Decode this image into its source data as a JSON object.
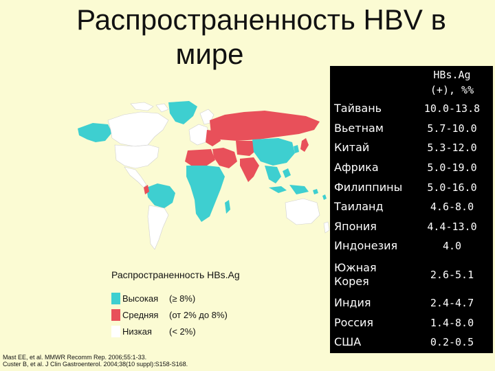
{
  "title": {
    "line1": "Распространенность HBV в",
    "line2": "мире"
  },
  "table": {
    "header": [
      "HBs.Ag",
      "(+), %%"
    ],
    "rows": [
      {
        "country": "Тайвань",
        "value": "10.0-13.8"
      },
      {
        "country": "Вьетнам",
        "value": "5.7-10.0"
      },
      {
        "country": "Китай",
        "value": "5.3-12.0"
      },
      {
        "country": "Африка",
        "value": "5.0-19.0"
      },
      {
        "country": "Филиппины",
        "value": "5.0-16.0"
      },
      {
        "country": "Таиланд",
        "value": "4.6-8.0"
      },
      {
        "country": "Япония",
        "value": "4.4-13.0"
      },
      {
        "country": "Индонезия",
        "value": "4.0"
      },
      {
        "country": "Южная Корея",
        "value": "2.6-5.1"
      },
      {
        "country": "Индия",
        "value": "2.4-4.7"
      },
      {
        "country": "Россия",
        "value": "1.4-8.0"
      },
      {
        "country": "США",
        "value": "0.2-0.5"
      }
    ]
  },
  "legend": {
    "title": "Распространенность HBs.Ag",
    "items": [
      {
        "label": "Высокая",
        "range": "(≥ 8%)",
        "color": "#3ecfd0"
      },
      {
        "label": "Средняя",
        "range": "(от 2% до 8%)",
        "color": "#e8505a"
      },
      {
        "label": "Низкая",
        "range": "(< 2%)",
        "color": "#ffffff"
      }
    ]
  },
  "references": [
    "Mast EE, et al. MMWR Recomm Rep. 2006;55:1-33.",
    "Custer B, et al. J Clin Gastroenterol. 2004;38(10 suppl):S158-S168."
  ],
  "colors": {
    "high": "#3ecfd0",
    "intermediate": "#e8505a",
    "low": "#ffffff",
    "background": "#fbfbd3"
  }
}
